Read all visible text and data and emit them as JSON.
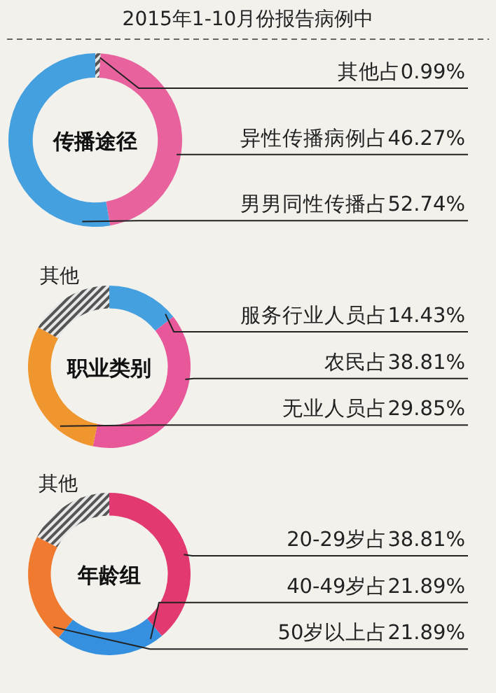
{
  "chart_data": [
    {
      "type": "donut",
      "title": "传播途径",
      "annotations": [
        "2015年1-10月份报告病例中"
      ],
      "categories": [
        "其他",
        "异性传播病例",
        "男男同性传播"
      ],
      "values": [
        0.99,
        46.27,
        52.74
      ],
      "colors": [
        "#555555",
        "#e8639d",
        "#45a0e0"
      ],
      "value_labels": [
        "占0.99%",
        "占46.27%",
        "占52.74%"
      ]
    },
    {
      "type": "donut",
      "title": "职业类别",
      "categories": [
        "服务行业人员",
        "农民",
        "无业人员",
        "其他"
      ],
      "values": [
        14.43,
        38.81,
        29.85,
        16.91
      ],
      "colors": [
        "#45a0e0",
        "#e8579a",
        "#f0962e",
        "#555555"
      ],
      "value_labels": [
        "占14.43%",
        "占38.81%",
        "占29.85%",
        null
      ]
    },
    {
      "type": "donut",
      "title": "年龄组",
      "categories": [
        "20-29岁",
        "40-49岁",
        "50岁以上",
        "其他"
      ],
      "values": [
        38.81,
        21.89,
        21.89,
        17.41
      ],
      "colors": [
        "#e23a70",
        "#3590e0",
        "#f07a30",
        "#555555"
      ],
      "value_labels": [
        "占38.81%",
        "占21.89%",
        "占21.89%",
        null
      ]
    }
  ]
}
